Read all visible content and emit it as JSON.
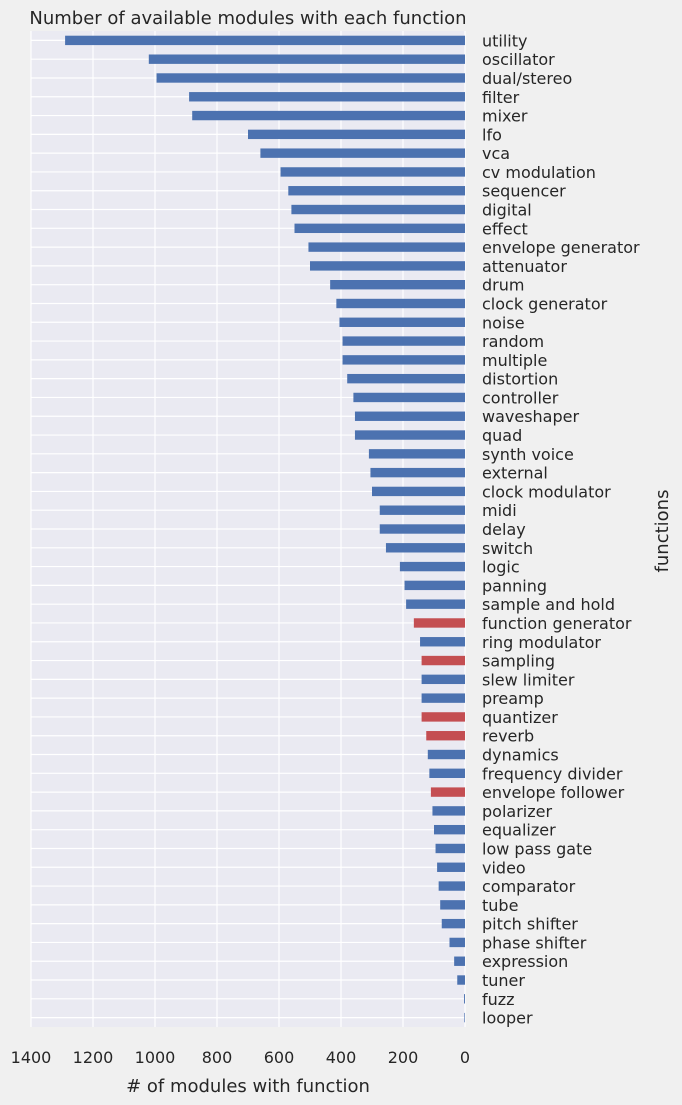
{
  "chart_data": {
    "type": "bar",
    "orientation": "horizontal",
    "title": "Number of available modules with each function",
    "xlabel": "# of modules with function",
    "ylabel": "functions",
    "xlim": [
      1400,
      0
    ],
    "x_inverted": true,
    "y_axis_side": "right",
    "grid": true,
    "xticks": [
      1400,
      1200,
      1000,
      800,
      600,
      400,
      200,
      0
    ],
    "colors": {
      "default": "#4c72b0",
      "highlight": "#c44e52",
      "background": "#eaeaf2",
      "page": "#f0f0f0",
      "grid": "#ffffff"
    },
    "categories": [
      "utility",
      "oscillator",
      "dual/stereo",
      "filter",
      "mixer",
      "lfo",
      "vca",
      "cv modulation",
      "sequencer",
      "digital",
      "effect",
      "envelope generator",
      "attenuator",
      "drum",
      "clock generator",
      "noise",
      "random",
      "multiple",
      "distortion",
      "controller",
      "waveshaper",
      "quad",
      "synth voice",
      "external",
      "clock modulator",
      "midi",
      "delay",
      "switch",
      "logic",
      "panning",
      "sample and hold",
      "function generator",
      "ring modulator",
      "sampling",
      "slew limiter",
      "preamp",
      "quantizer",
      "reverb",
      "dynamics",
      "frequency divider",
      "envelope follower",
      "polarizer",
      "equalizer",
      "low pass gate",
      "video",
      "comparator",
      "tube",
      "pitch shifter",
      "phase shifter",
      "expression",
      "tuner",
      "fuzz",
      "looper"
    ],
    "values": [
      1290,
      1020,
      995,
      890,
      880,
      700,
      660,
      595,
      570,
      560,
      550,
      505,
      500,
      435,
      415,
      405,
      395,
      395,
      380,
      360,
      355,
      355,
      310,
      305,
      300,
      275,
      275,
      255,
      210,
      195,
      190,
      165,
      145,
      140,
      140,
      140,
      140,
      125,
      120,
      115,
      110,
      105,
      100,
      95,
      90,
      85,
      80,
      75,
      50,
      35,
      25,
      3,
      2
    ],
    "highlighted": [
      "function generator",
      "sampling",
      "quantizer",
      "reverb",
      "envelope follower"
    ]
  }
}
